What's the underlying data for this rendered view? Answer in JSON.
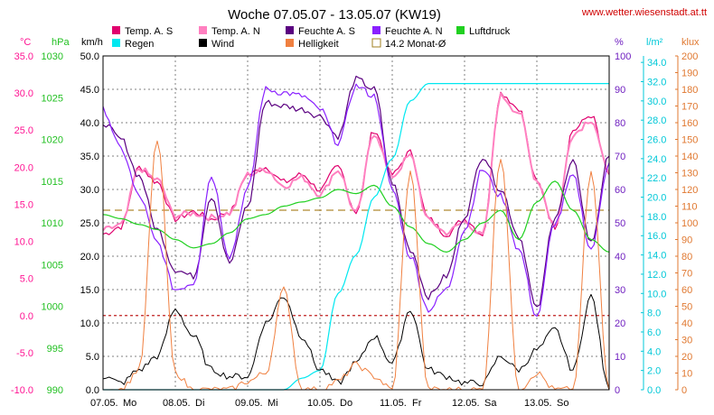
{
  "chart_data": {
    "type": "line",
    "title": "Woche 07.05.07 - 13.05.07 (KW19)",
    "source": "www.wetter.wiesenstadt.at.tt",
    "days": [
      "07.05.",
      "08.05.",
      "09.05.",
      "10.05.",
      "11.05.",
      "12.05.",
      "13.05."
    ],
    "day_names": [
      "Mo",
      "Di",
      "Mi",
      "Do",
      "Fr",
      "Sa",
      "So"
    ],
    "x_hours": [
      0,
      6,
      12,
      18,
      24,
      30,
      36,
      42,
      48,
      54,
      60,
      66,
      72,
      78,
      84,
      90,
      96,
      102,
      108,
      114,
      120,
      126,
      132,
      138,
      144,
      150,
      156,
      162,
      168
    ],
    "axes": [
      {
        "id": "temp",
        "unit": "°C",
        "ticks": [
          "35.0",
          "30.0",
          "25.0",
          "20.0",
          "15.0",
          "10.0",
          "5.0",
          "0.0",
          "-5.0",
          "-10.0"
        ],
        "color": "#ff1493",
        "range": [
          -10,
          35
        ]
      },
      {
        "id": "press",
        "unit": "hPa",
        "ticks": [
          "1030",
          "1025",
          "1020",
          "1015",
          "1010",
          "1005",
          "1000",
          "995",
          "990"
        ],
        "color": "#22c022",
        "range": [
          990,
          1030
        ]
      },
      {
        "id": "wind",
        "unit": "km/h",
        "ticks": [
          "50.0",
          "45.0",
          "40.0",
          "35.0",
          "30.0",
          "25.0",
          "20.0",
          "15.0",
          "10.0",
          "5.0",
          "0.0"
        ],
        "color": "#000000",
        "range": [
          0,
          50
        ]
      },
      {
        "id": "hum",
        "unit": "%",
        "ticks": [
          "100",
          "90",
          "80",
          "70",
          "60",
          "50",
          "40",
          "30",
          "20",
          "10",
          "0"
        ],
        "color": "#7020c0",
        "range": [
          0,
          100
        ]
      },
      {
        "id": "rain",
        "unit": "l/m²",
        "ticks": [
          "34.0",
          "32.0",
          "30.0",
          "28.0",
          "26.0",
          "24.0",
          "22.0",
          "20.0",
          "18.0",
          "16.0",
          "14.0",
          "12.0",
          "10.0",
          "8.0",
          "6.0",
          "4.0",
          "2.0",
          "0.0"
        ],
        "color": "#00c8d8",
        "range": [
          0,
          34.67
        ]
      },
      {
        "id": "lux",
        "unit": "klux",
        "ticks": [
          "200",
          "190",
          "180",
          "170",
          "160",
          "150",
          "140",
          "130",
          "120",
          "110",
          "100",
          "90",
          "80",
          "70",
          "60",
          "50",
          "40",
          "30",
          "20",
          "10",
          "0"
        ],
        "color": "#e07830",
        "range": [
          0,
          200
        ]
      }
    ],
    "legend": [
      {
        "name": "Temp. A. S",
        "color": "#e0006e",
        "style": "box"
      },
      {
        "name": "Temp. A. N",
        "color": "#ff80c0",
        "style": "box"
      },
      {
        "name": "Feuchte A. S",
        "color": "#5a0080",
        "style": "box"
      },
      {
        "name": "Feuchte A. N",
        "color": "#8a20ff",
        "style": "box"
      },
      {
        "name": "Luftdruck",
        "color": "#20d020",
        "style": "box"
      },
      {
        "name": "Regen",
        "color": "#00e8f0",
        "style": "box"
      },
      {
        "name": "Wind",
        "color": "#000000",
        "style": "box"
      },
      {
        "name": "Helligkeit",
        "color": "#f08040",
        "style": "box"
      },
      {
        "name": "14.2 Monat-Ø",
        "color": "#a08020",
        "style": "outline"
      }
    ],
    "reference_lines": [
      {
        "axis": "temp",
        "value": 14.2,
        "color": "#b08a30",
        "style": "dashed"
      },
      {
        "axis": "temp",
        "value": 0,
        "color": "#c02020",
        "style": "dashed"
      }
    ],
    "series": [
      {
        "name": "Temp. A. S",
        "axis": "temp",
        "color": "#e0006e",
        "width": 1.2,
        "values": [
          11,
          12,
          20,
          18,
          13,
          14,
          13,
          14,
          19,
          20,
          18,
          19,
          17,
          20,
          14,
          25,
          19,
          22,
          13,
          11,
          13,
          11,
          30,
          28,
          18,
          12,
          25,
          27,
          19
        ]
      },
      {
        "name": "Temp. A. N",
        "axis": "temp",
        "color": "#ff80c0",
        "width": 2,
        "values": [
          11.5,
          12.2,
          19.8,
          18.3,
          13.5,
          13.8,
          13.2,
          13.8,
          19,
          19.7,
          17.5,
          18.6,
          16.4,
          19.6,
          13.8,
          24.6,
          18.8,
          21.5,
          12.8,
          11.2,
          12.6,
          10.8,
          29.6,
          27.4,
          18.2,
          12.1,
          24.5,
          26.4,
          19.2
        ]
      },
      {
        "name": "Feuchte A. S",
        "axis": "hum",
        "color": "#5a0080",
        "width": 1.2,
        "values": [
          80,
          75,
          64,
          48,
          36,
          34,
          58,
          38,
          55,
          86,
          85,
          84,
          82,
          76,
          93,
          90,
          62,
          42,
          28,
          34,
          52,
          70,
          60,
          46,
          24,
          52,
          68,
          44,
          70
        ]
      },
      {
        "name": "Feuchte A. N",
        "axis": "hum",
        "color": "#8a20ff",
        "width": 1.2,
        "values": [
          84,
          72,
          58,
          44,
          30,
          32,
          64,
          40,
          60,
          90,
          89,
          88,
          84,
          74,
          91,
          88,
          60,
          40,
          24,
          30,
          48,
          66,
          58,
          42,
          22,
          50,
          64,
          42,
          68
        ]
      },
      {
        "name": "Luftdruck",
        "axis": "press",
        "color": "#20d020",
        "width": 1.2,
        "values": [
          1011,
          1010.5,
          1009.8,
          1009.2,
          1008,
          1007,
          1007.5,
          1008.8,
          1010.5,
          1011,
          1012,
          1012.5,
          1013,
          1014,
          1013.5,
          1014.5,
          1012,
          1009.5,
          1007.5,
          1006.5,
          1008,
          1010,
          1011.5,
          1008,
          1012.5,
          1015,
          1011.5,
          1008,
          1006.5
        ]
      },
      {
        "name": "Regen",
        "axis": "rain",
        "color": "#00e8f0",
        "width": 1.2,
        "values": [
          0,
          0,
          0,
          0,
          0,
          0,
          0,
          0,
          0,
          0,
          0,
          1.2,
          2,
          10,
          14,
          20,
          24,
          30,
          31.8,
          31.8,
          31.8,
          31.8,
          31.8,
          31.8,
          31.8,
          31.8,
          31.8,
          31.8,
          31.8
        ]
      },
      {
        "name": "Wind",
        "axis": "wind",
        "color": "#000000",
        "width": 1,
        "values": [
          2,
          1,
          3,
          5,
          12,
          8,
          3,
          2,
          2,
          10,
          14,
          8,
          3,
          1,
          4,
          8,
          4,
          12,
          3,
          2,
          1,
          1,
          5,
          3,
          6,
          9,
          3,
          14,
          0
        ]
      },
      {
        "name": "Helligkeit",
        "axis": "lux",
        "color": "#f08040",
        "width": 1,
        "values": [
          0,
          0,
          12,
          150,
          10,
          0,
          0,
          0,
          5,
          10,
          60,
          0,
          0,
          5,
          15,
          8,
          0,
          130,
          0,
          0,
          0,
          0,
          140,
          0,
          10,
          0,
          0,
          130,
          0
        ]
      }
    ]
  }
}
